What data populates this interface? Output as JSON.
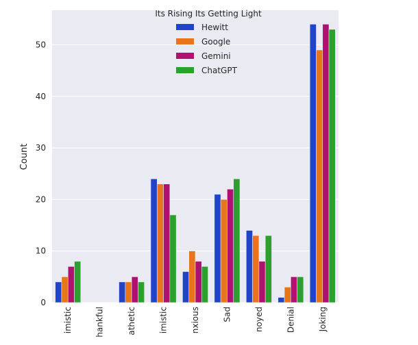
{
  "chart_data": {
    "type": "bar",
    "title": "",
    "xlabel": "",
    "ylabel": "Count",
    "ylim": [
      0,
      56.7
    ],
    "yticks": [
      0,
      10,
      20,
      30,
      40,
      50
    ],
    "grid": true,
    "legend_title": "Its Rising Its Getting Light",
    "legend_position": "top-center",
    "categories": [
      "Optimistic",
      "Thankful",
      "Empathetic",
      "Pessimistic",
      "Anxious",
      "Sad",
      "Annoyed",
      "Denial",
      "Joking"
    ],
    "category_labels_visible": [
      "imistic",
      "hankful",
      "athetic",
      "imistic",
      "nxious",
      "Sad",
      "noyed",
      "Denial",
      "Joking"
    ],
    "series": [
      {
        "name": "Hewitt",
        "color": "#1f44c8",
        "values": [
          4,
          0,
          4,
          24,
          6,
          21,
          14,
          1,
          54
        ]
      },
      {
        "name": "Google",
        "color": "#e8751a",
        "values": [
          5,
          0,
          4,
          23,
          10,
          20,
          13,
          3,
          49
        ]
      },
      {
        "name": "Gemini",
        "color": "#b0106f",
        "values": [
          7,
          0,
          5,
          23,
          8,
          22,
          8,
          5,
          54
        ]
      },
      {
        "name": "ChatGPT",
        "color": "#2ca02c",
        "values": [
          8,
          0,
          4,
          17,
          7,
          24,
          13,
          5,
          53
        ]
      }
    ]
  }
}
